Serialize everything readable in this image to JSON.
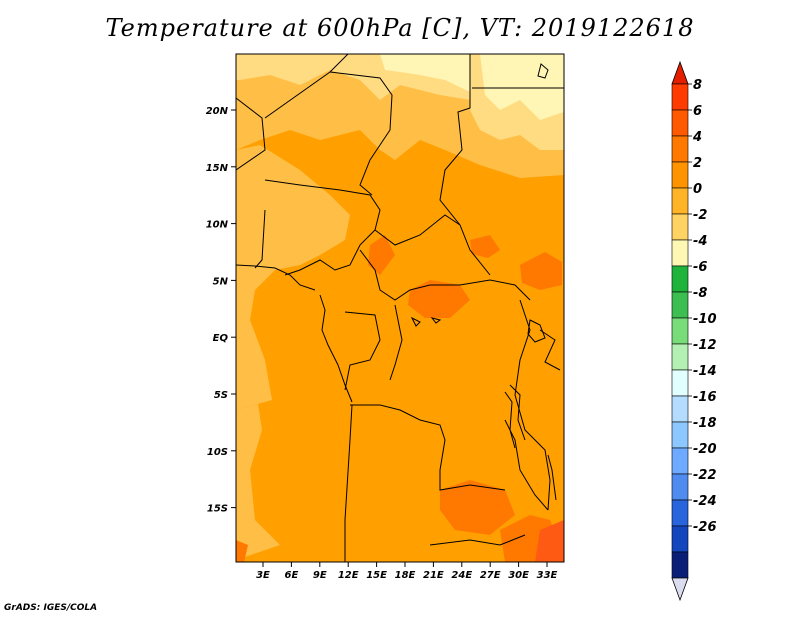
{
  "title": "Temperature at 600hPa [C], VT: 2019122618",
  "credit": "GrADS: IGES/COLA",
  "map": {
    "lat_labels": [
      "20N",
      "15N",
      "10N",
      "5N",
      "EQ",
      "5S",
      "10S",
      "15S"
    ],
    "lon_labels": [
      "3E",
      "6E",
      "9E",
      "12E",
      "15E",
      "18E",
      "21E",
      "24E",
      "27E",
      "30E",
      "33E"
    ]
  },
  "colorbar": {
    "labels": [
      "8",
      "6",
      "4",
      "2",
      "0",
      "-2",
      "-4",
      "-6",
      "-8",
      "-10",
      "-12",
      "-14",
      "-16",
      "-18",
      "-20",
      "-22",
      "-24",
      "-26"
    ],
    "colors": [
      "#ff3c00",
      "#ff5a00",
      "#ff7800",
      "#ff9400",
      "#ffb428",
      "#ffd264",
      "#fff8b4",
      "#1eb43c",
      "#3cbe50",
      "#78dc78",
      "#b4f0b4",
      "#e1ffff",
      "#b4dcff",
      "#8cc8ff",
      "#6eaaff",
      "#508cf0",
      "#2864dc",
      "#1446be",
      "#0a1e78"
    ],
    "top_color": "#e61e00",
    "bottom_color": "#dcdcf0"
  },
  "fill_colors": {
    "base": "#ffa000",
    "light": "#ffbe46",
    "pale": "#ffdc82",
    "yellow": "#fff5b4",
    "warm": "#ff7800",
    "hot": "#ff5a14"
  }
}
